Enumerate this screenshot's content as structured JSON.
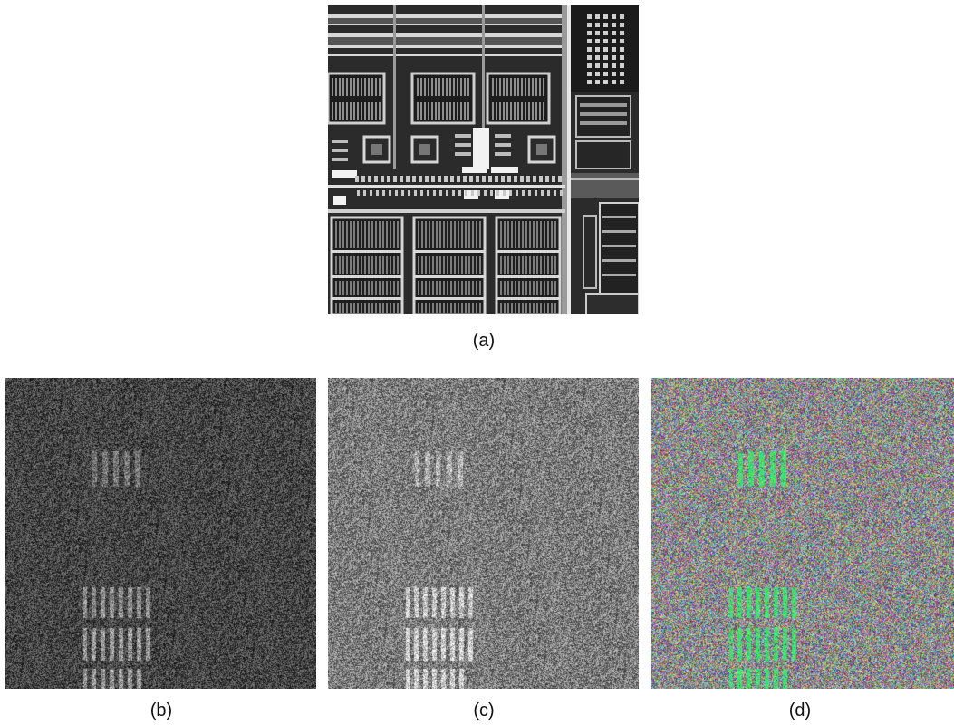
{
  "figure": {
    "panels": [
      {
        "id": "a",
        "label": "(a)",
        "kind": "clean grayscale micrograph"
      },
      {
        "id": "b",
        "label": "(b)",
        "kind": "dark noisy grayscale"
      },
      {
        "id": "c",
        "label": "(c)",
        "kind": "brighter noisy grayscale"
      },
      {
        "id": "d",
        "label": "(d)",
        "kind": "colored noise with green highlights"
      }
    ]
  },
  "colors": {
    "background": "#ffffff",
    "highlight_green": "#22dd66",
    "chip_dark": "#2a2a2a"
  }
}
